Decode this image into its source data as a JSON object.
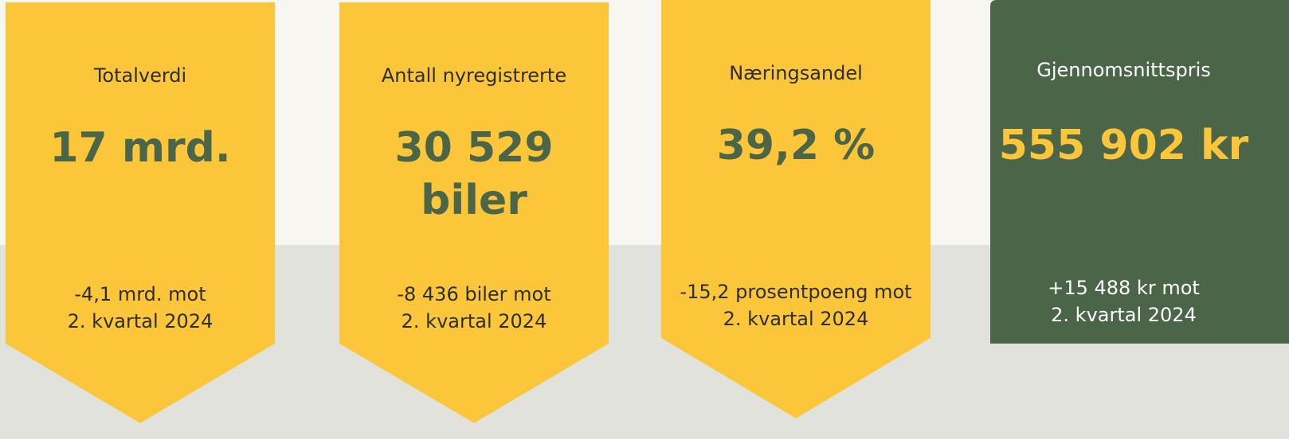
{
  "cards": [
    {
      "label": "Totalverdi",
      "value": "17 mrd.",
      "change": [
        "-4,1 mrd. mot",
        "2. kvartal 2024"
      ]
    },
    {
      "label": "Antall nyregistrerte",
      "value": "30 529 biler",
      "change": [
        "-8 436 biler mot",
        "2. kvartal 2024"
      ]
    },
    {
      "label": "Næringsandel",
      "value": "39,2 %",
      "change": [
        "-15,2 prosentpoeng mot",
        "2. kvartal 2024"
      ]
    },
    {
      "label": "Gjennomsnittspris",
      "value": "555 902 kr",
      "change": [
        "+15 488 kr mot",
        "2. kvartal 2024"
      ]
    }
  ]
}
